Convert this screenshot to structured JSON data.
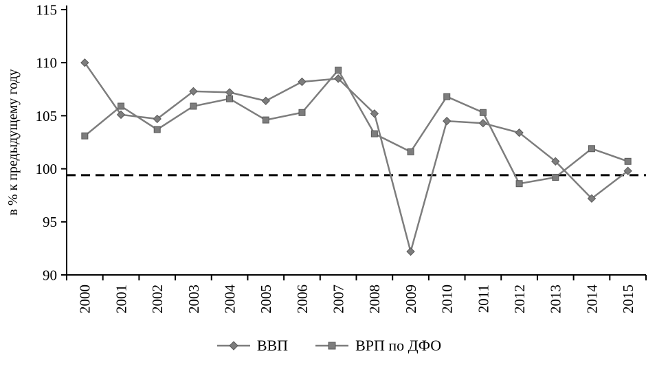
{
  "chart_data": {
    "type": "line",
    "x": [
      "2000",
      "2001",
      "2002",
      "2003",
      "2004",
      "2005",
      "2006",
      "2007",
      "2008",
      "2009",
      "2010",
      "2011",
      "2012",
      "2013",
      "2014",
      "2015"
    ],
    "series": [
      {
        "name": "ВВП",
        "marker": "diamond",
        "values": [
          110.0,
          105.1,
          104.7,
          107.3,
          107.2,
          106.4,
          108.2,
          108.5,
          105.2,
          92.2,
          104.5,
          104.3,
          103.4,
          100.7,
          97.2,
          99.8
        ]
      },
      {
        "name": "ВРП по ДФО",
        "marker": "square",
        "values": [
          103.1,
          105.9,
          103.7,
          105.9,
          106.6,
          104.6,
          105.3,
          109.3,
          103.3,
          101.6,
          106.8,
          105.3,
          98.6,
          99.2,
          101.9,
          100.7
        ]
      }
    ],
    "ylabel": "в % к предыдущему году",
    "xlabel": "",
    "ylim": [
      90,
      115
    ],
    "yticks": [
      90,
      95,
      100,
      105,
      110,
      115
    ],
    "reference_line": 99.4,
    "grid": false,
    "legend_position": "bottom",
    "colors": {
      "series": "#7d7d7d",
      "marker_edge": "#595959",
      "reference": "#000000",
      "axis": "#000000"
    }
  }
}
